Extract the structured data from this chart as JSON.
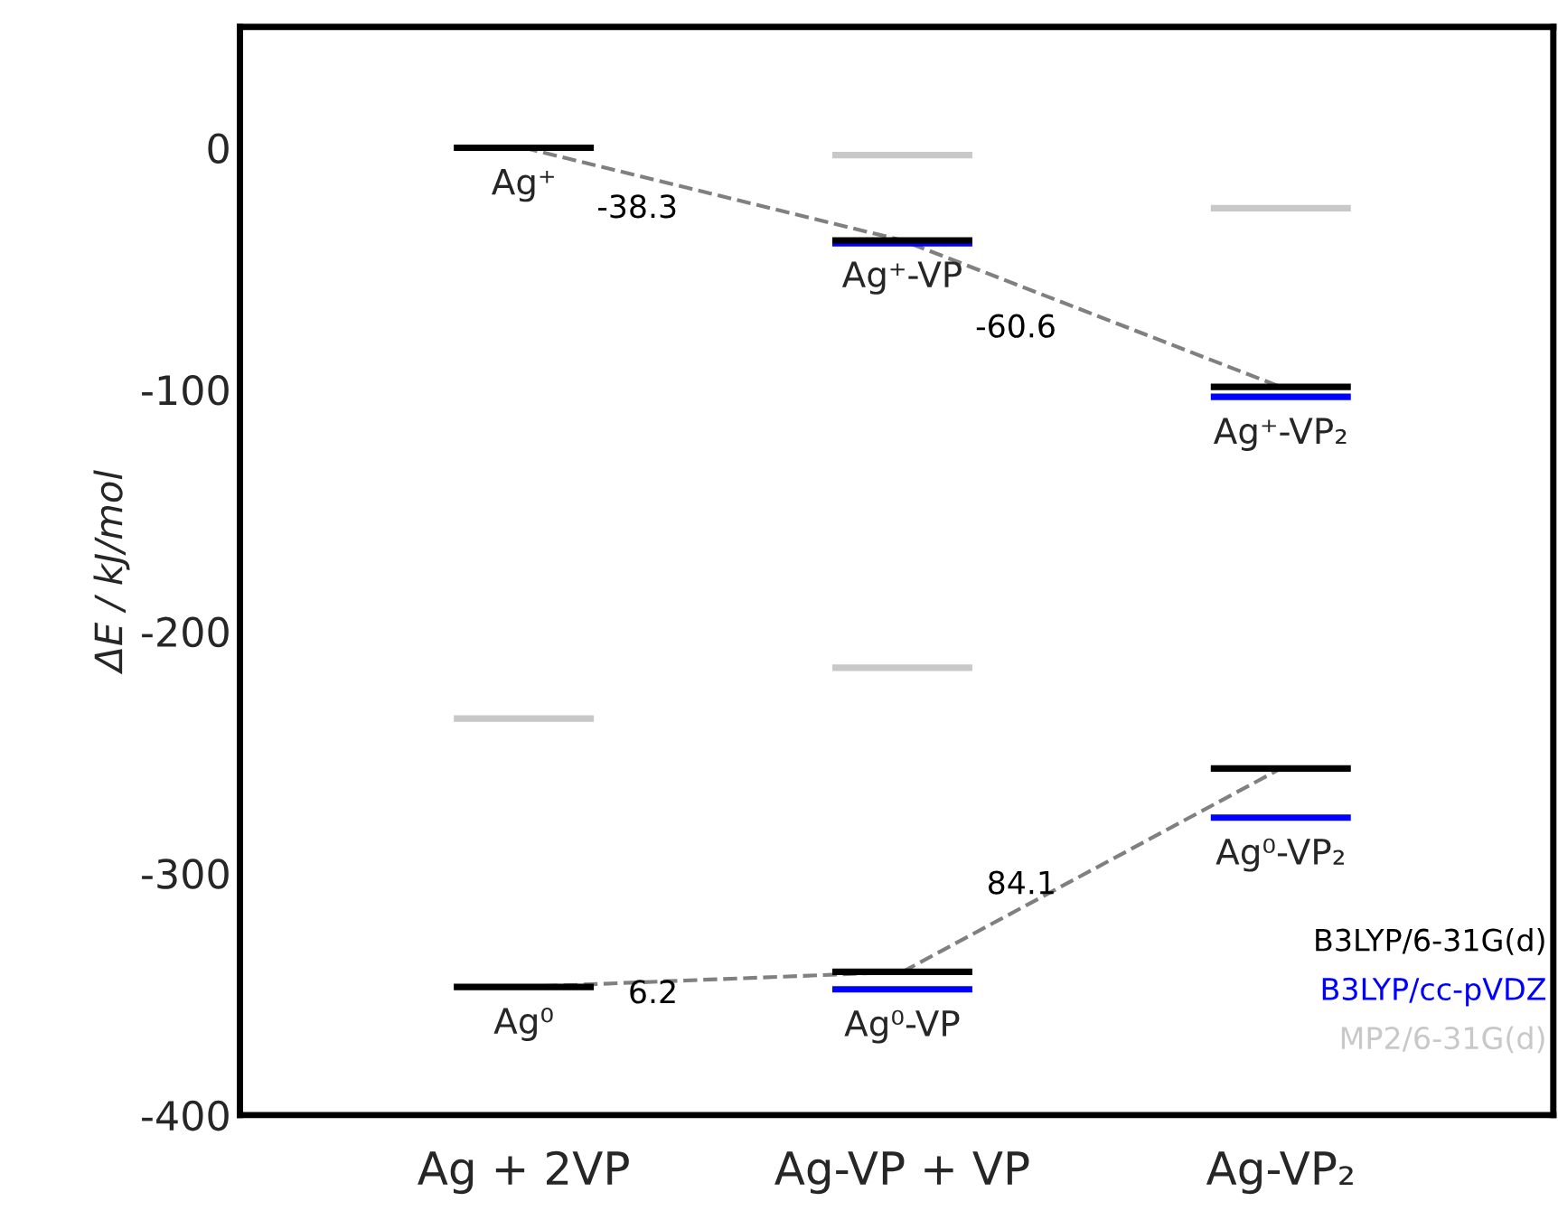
{
  "chart_data": {
    "type": "bar",
    "ylabel": "ΔE / kJ/mol",
    "categories": [
      "Ag + 2VP",
      "Ag-VP + VP",
      "Ag-VP₂"
    ],
    "ylim": [
      -400,
      50
    ],
    "yticks": [
      -400,
      -300,
      -200,
      -100,
      0
    ],
    "grid": false,
    "series": [
      {
        "type": "line",
        "color": "#808080",
        "line_style": "dashed",
        "values": [
          0,
          -38.3,
          -98.9
        ]
      },
      {
        "type": "line",
        "color": "#808080",
        "line_style": "dashed",
        "values": [
          -347,
          -340.8,
          -256.7
        ]
      },
      {
        "name": "MP2/6-31G(d)",
        "color": "#c8c8c8",
        "values": [
          null,
          0,
          0
        ],
        "base": [
          null,
          -3,
          -25
        ]
      },
      {
        "color": "#c8c8c8",
        "values": [
          0,
          0,
          null
        ],
        "base": [
          -236,
          -215,
          null
        ]
      },
      {
        "name": "B3LYP/cc-pVDZ",
        "color": "#0000ff",
        "values": [
          null,
          0,
          0
        ],
        "base": [
          null,
          -39.5,
          -103
        ]
      },
      {
        "color": "#0000ff",
        "values": [
          null,
          0,
          0
        ],
        "base": [
          null,
          -348,
          -277
        ]
      },
      {
        "name": "B3LYP/6-31G(d)",
        "color": "#000000",
        "values": [
          0,
          0,
          0
        ],
        "base": [
          0,
          -38.3,
          -98.9
        ]
      },
      {
        "color": "#000000",
        "values": [
          0,
          0,
          0
        ],
        "base": [
          -347,
          -340.8,
          -256.7
        ]
      }
    ],
    "annotations": [
      "-38.3",
      "-60.6",
      "6.2",
      "84.1",
      {
        "text": "Ag⁺",
        "x": "Ag + 2VP",
        "y": 0
      },
      {
        "text": "Ag⁺-VP",
        "x": "Ag-VP + VP",
        "y": -38.3
      },
      {
        "text": "Ag⁺-VP₂",
        "x": "Ag-VP₂",
        "y": -103
      },
      {
        "text": "Ag⁰",
        "x": "Ag + 2VP",
        "y": -347
      },
      {
        "text": "Ag⁰-VP",
        "x": "Ag-VP + VP",
        "y": -348
      },
      {
        "text": "Ag⁰-VP₂",
        "x": "Ag-VP₂",
        "y": -277
      }
    ]
  }
}
